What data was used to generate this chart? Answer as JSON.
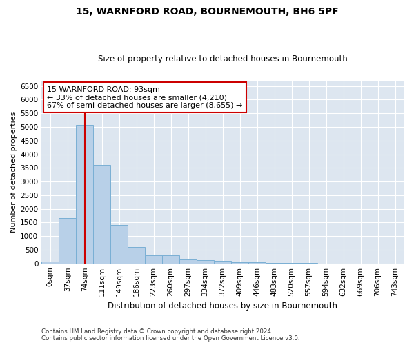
{
  "title1": "15, WARNFORD ROAD, BOURNEMOUTH, BH6 5PF",
  "title2": "Size of property relative to detached houses in Bournemouth",
  "xlabel": "Distribution of detached houses by size in Bournemouth",
  "ylabel": "Number of detached properties",
  "bin_labels": [
    "0sqm",
    "37sqm",
    "74sqm",
    "111sqm",
    "149sqm",
    "186sqm",
    "223sqm",
    "260sqm",
    "297sqm",
    "334sqm",
    "372sqm",
    "409sqm",
    "446sqm",
    "483sqm",
    "520sqm",
    "557sqm",
    "594sqm",
    "632sqm",
    "669sqm",
    "706sqm",
    "743sqm"
  ],
  "bar_heights": [
    80,
    1650,
    5080,
    3600,
    1400,
    610,
    300,
    290,
    155,
    115,
    90,
    55,
    30,
    5,
    5,
    5,
    3,
    3,
    2,
    2,
    2
  ],
  "bar_color": "#b8d0e8",
  "bar_edge_color": "#7aafd4",
  "property_bin_index": 2,
  "annotation_title": "15 WARNFORD ROAD: 93sqm",
  "annotation_line1": "← 33% of detached houses are smaller (4,210)",
  "annotation_line2": "67% of semi-detached houses are larger (8,655) →",
  "vline_color": "#cc0000",
  "annotation_box_color": "#ffffff",
  "annotation_box_edge": "#cc0000",
  "ylim": [
    0,
    6700
  ],
  "yticks": [
    0,
    500,
    1000,
    1500,
    2000,
    2500,
    3000,
    3500,
    4000,
    4500,
    5000,
    5500,
    6000,
    6500
  ],
  "plot_bg_color": "#dde6f0",
  "fig_bg_color": "#ffffff",
  "footer1": "Contains HM Land Registry data © Crown copyright and database right 2024.",
  "footer2": "Contains public sector information licensed under the Open Government Licence v3.0.",
  "grid_color": "#ffffff",
  "title_fontsize": 10,
  "subtitle_fontsize": 8.5,
  "ylabel_fontsize": 8,
  "xlabel_fontsize": 8.5,
  "tick_fontsize": 7.5,
  "annot_fontsize": 8
}
